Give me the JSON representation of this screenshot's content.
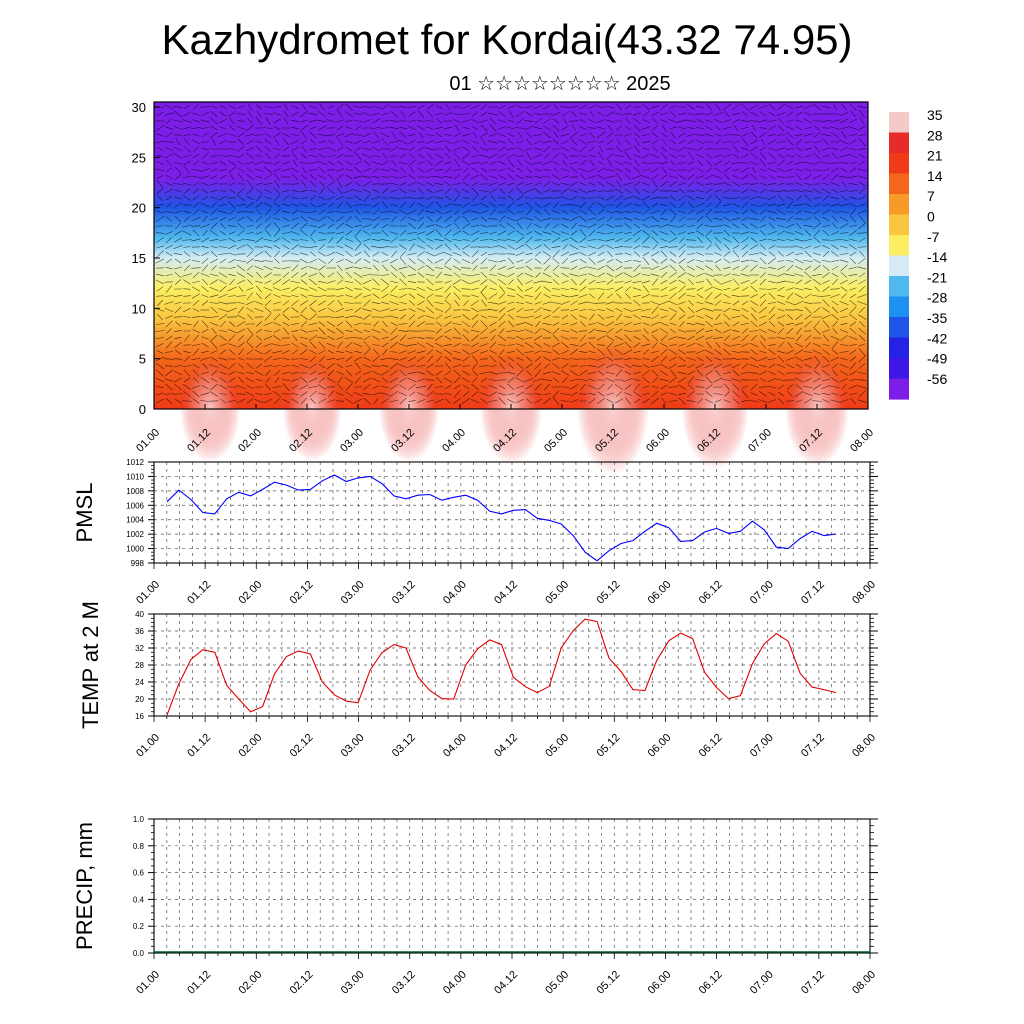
{
  "title": "Kazhydromet for Kordai(43.32 74.95)",
  "subtitle": "01 ☆☆☆☆☆☆☆☆ 2025",
  "chart_data": [
    {
      "type": "heatmap",
      "name": "time-height temperature section with wind barbs",
      "x_tick_labels": [
        "01.00",
        "01.12",
        "02.00",
        "02.12",
        "03.00",
        "03.12",
        "04.00",
        "04.12",
        "05.00",
        "05.12",
        "06.00",
        "06.12",
        "07.00",
        "07.12",
        "08.00"
      ],
      "y_ticks": [
        0,
        5,
        10,
        15,
        20,
        25,
        30
      ],
      "ylim": [
        0,
        30.5
      ],
      "colorbar_labels": [
        "35",
        "28",
        "21",
        "14",
        "7",
        "0",
        "-7",
        "-14",
        "-21",
        "-28",
        "-35",
        "-42",
        "-49",
        "-56"
      ],
      "colorbar_colors": [
        "#f6c9c9",
        "#e72a2a",
        "#ef3b17",
        "#f4661a",
        "#f79a27",
        "#f9c640",
        "#fbee62",
        "#d5ecf6",
        "#4fb9ee",
        "#1e90f2",
        "#1f55e6",
        "#2622e4",
        "#3e17e8",
        "#7d1ee8"
      ],
      "layers": [
        {
          "height_km": 0,
          "temp_c": 25
        },
        {
          "height_km": 5,
          "temp_c": 14
        },
        {
          "height_km": 9,
          "temp_c": 6
        },
        {
          "height_km": 12,
          "temp_c": -2
        },
        {
          "height_km": 15,
          "temp_c": -12
        },
        {
          "height_km": 17,
          "temp_c": -18
        },
        {
          "height_km": 20,
          "temp_c": -35
        },
        {
          "height_km": 23,
          "temp_c": -50
        },
        {
          "height_km": 25,
          "temp_c": -58
        },
        {
          "height_km": 28,
          "temp_c": -60
        },
        {
          "height_km": 30.5,
          "temp_c": -62
        }
      ]
    },
    {
      "type": "line",
      "ylabel": "PMSL",
      "x_tick_labels": [
        "01.00",
        "01.12",
        "02.00",
        "02.12",
        "03.00",
        "03.12",
        "04.00",
        "04.12",
        "05.00",
        "05.12",
        "06.00",
        "06.12",
        "07.00",
        "07.12",
        "08.00"
      ],
      "y_ticks": [
        998,
        1000,
        1002,
        1004,
        1006,
        1008,
        1010,
        1012
      ],
      "ylim": [
        998,
        1012
      ],
      "color": "#0000ff",
      "values": [
        1006.5,
        1008.1,
        1006.8,
        1005.0,
        1004.8,
        1006.9,
        1007.8,
        1007.3,
        1008.2,
        1009.2,
        1008.8,
        1008.1,
        1008.2,
        1009.4,
        1010.2,
        1009.3,
        1009.8,
        1010.0,
        1009.0,
        1007.3,
        1006.9,
        1007.4,
        1007.5,
        1006.7,
        1007.1,
        1007.4,
        1006.7,
        1005.2,
        1004.8,
        1005.3,
        1005.4,
        1004.2,
        1003.9,
        1003.4,
        1001.8,
        999.5,
        998.3,
        999.7,
        1000.7,
        1001.1,
        1002.4,
        1003.5,
        1002.9,
        1001.0,
        1001.1,
        1002.3,
        1002.8,
        1002.1,
        1002.4,
        1003.8,
        1002.6,
        1000.2,
        1000.0,
        1001.4,
        1002.4,
        1001.8,
        1002.0
      ]
    },
    {
      "type": "line",
      "ylabel": "TEMP at 2 M",
      "x_tick_labels": [
        "01.00",
        "01.12",
        "02.00",
        "02.12",
        "03.00",
        "03.12",
        "04.00",
        "04.12",
        "05.00",
        "05.12",
        "06.00",
        "06.12",
        "07.00",
        "07.12",
        "08.00"
      ],
      "y_ticks": [
        16,
        20,
        24,
        28,
        32,
        36,
        40
      ],
      "ylim": [
        16,
        40
      ],
      "color": "#e00000",
      "values": [
        16.2,
        23.6,
        29.3,
        31.6,
        31.0,
        23.2,
        20.0,
        17.0,
        18.2,
        25.9,
        30.0,
        31.3,
        30.6,
        24.0,
        21.0,
        19.5,
        19.1,
        26.8,
        30.9,
        32.8,
        32.0,
        25.2,
        22.0,
        20.1,
        20.0,
        28.0,
        31.8,
        33.9,
        32.8,
        25.1,
        22.9,
        21.5,
        23.0,
        32.0,
        36.1,
        38.8,
        38.2,
        29.6,
        26.5,
        22.2,
        22.0,
        29.1,
        33.7,
        35.5,
        34.2,
        26.3,
        22.7,
        20.1,
        20.8,
        28.3,
        33.0,
        35.4,
        33.6,
        26.0,
        22.8,
        22.2,
        21.5
      ]
    },
    {
      "type": "bar",
      "ylabel": "PRECIP, mm",
      "x_tick_labels": [
        "01.00",
        "01.12",
        "02.00",
        "02.12",
        "03.00",
        "03.12",
        "04.00",
        "04.12",
        "05.00",
        "05.12",
        "06.00",
        "06.12",
        "07.00",
        "07.12",
        "08.00"
      ],
      "y_tick_labels": [
        "0.0",
        "0.2",
        "0.4",
        "0.6",
        "0.8",
        "1.0"
      ],
      "ylim": [
        0,
        1
      ],
      "values": []
    }
  ]
}
